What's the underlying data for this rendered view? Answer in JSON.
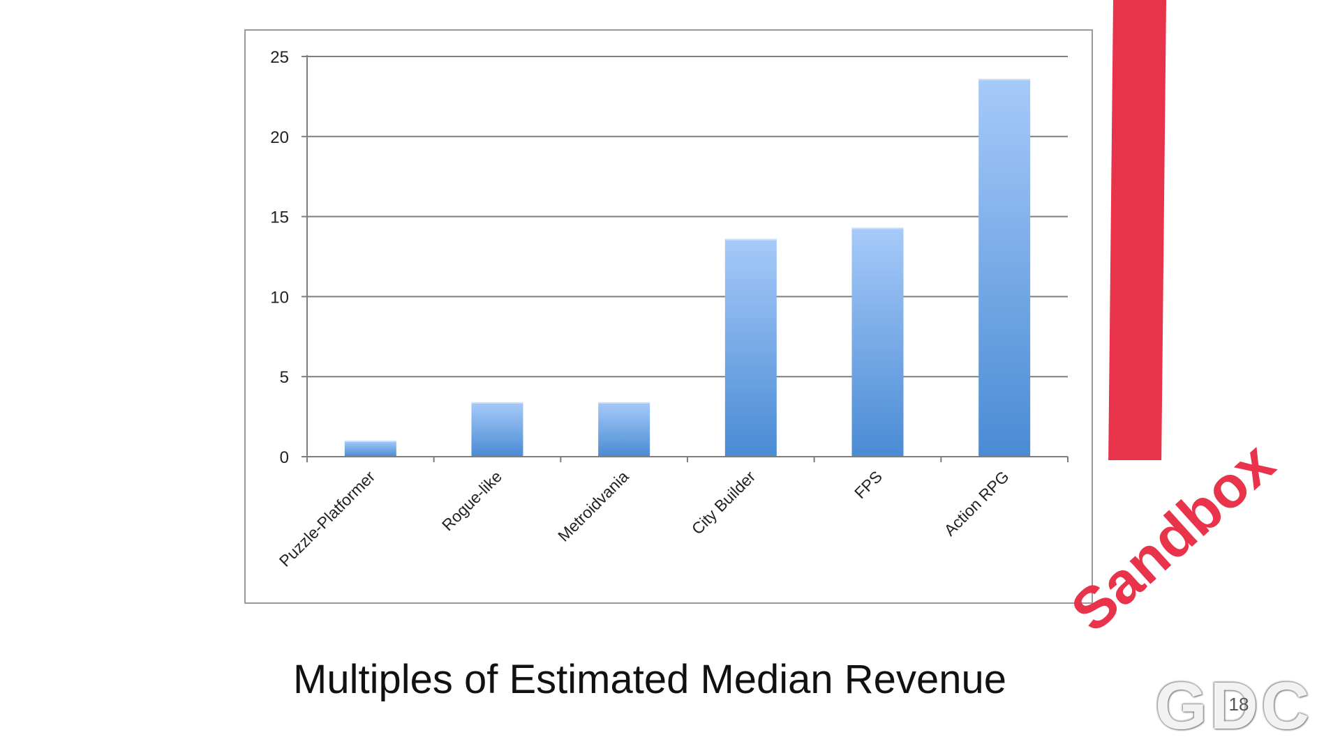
{
  "chart_data": {
    "type": "bar",
    "title": "Multiples of Estimated Median Revenue",
    "categories": [
      "Puzzle-Platformer",
      "Rogue-like",
      "Metroidvania",
      "City Builder",
      "FPS",
      "Action RPG"
    ],
    "values": [
      1.0,
      3.4,
      3.4,
      13.6,
      14.3,
      23.6
    ],
    "ylim": [
      0,
      25
    ],
    "yticks": [
      "0",
      "5",
      "10",
      "15",
      "20",
      "25"
    ],
    "xlabel": "",
    "ylabel": "",
    "grid": "horizontal",
    "legend": "none",
    "bar_color_top": "#a6caf9",
    "bar_color_bottom": "#4a8bd4"
  },
  "overlay": {
    "sandbox_label": "Sandbox",
    "accent_color": "#e8334a"
  },
  "logo": {
    "text": "GDC",
    "year": "18"
  }
}
